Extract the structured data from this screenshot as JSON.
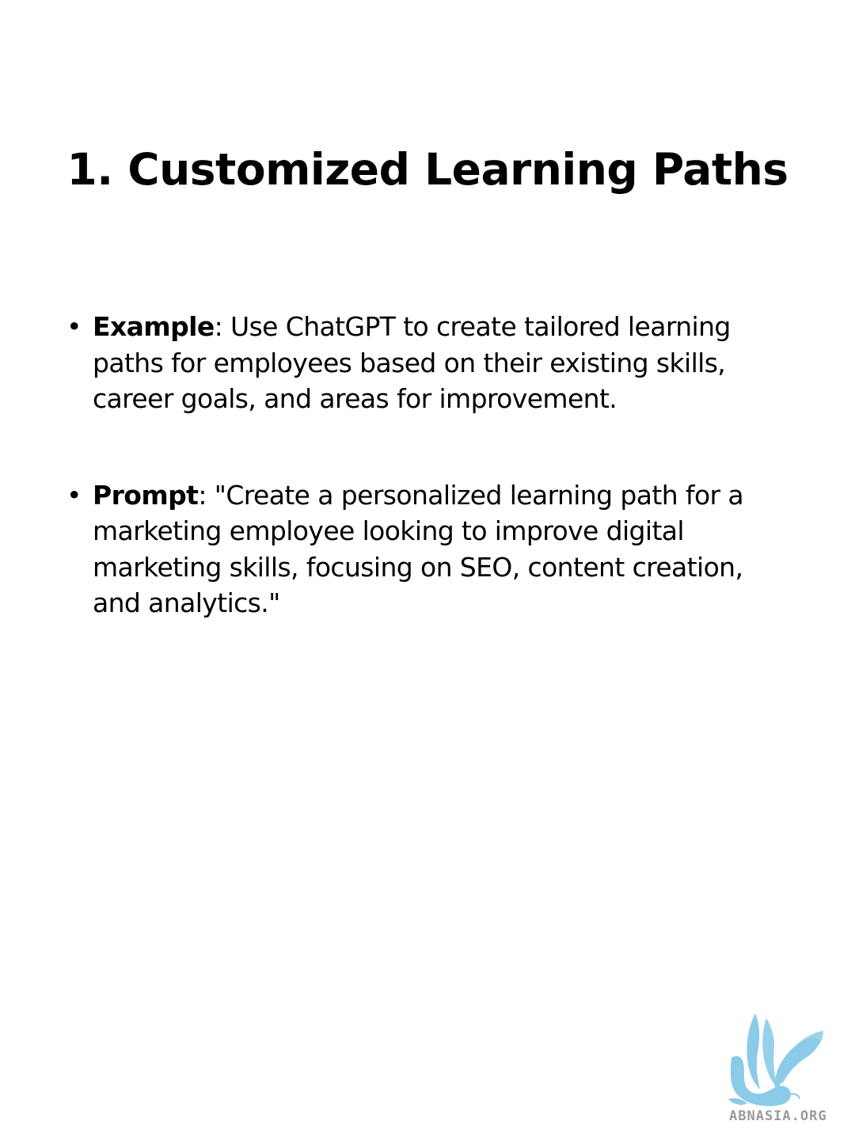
{
  "slide": {
    "title": "1. Customized Learning Paths",
    "bullets": [
      {
        "term": "Example",
        "text": ": Use ChatGPT to create tailored learning paths for employees based on their existing skills, career goals, and areas for improvement."
      },
      {
        "term": "Prompt",
        "text": ": \"Create a personalized learning path for a marketing employee looking to improve digital marketing skills, focusing on SEO, content creation, and analytics.\""
      }
    ],
    "bullet_glyph": "•"
  },
  "watermark": {
    "icon": "griffin-logo-icon",
    "text": "ABNASIA.ORG",
    "color": "#8ccbe8"
  }
}
